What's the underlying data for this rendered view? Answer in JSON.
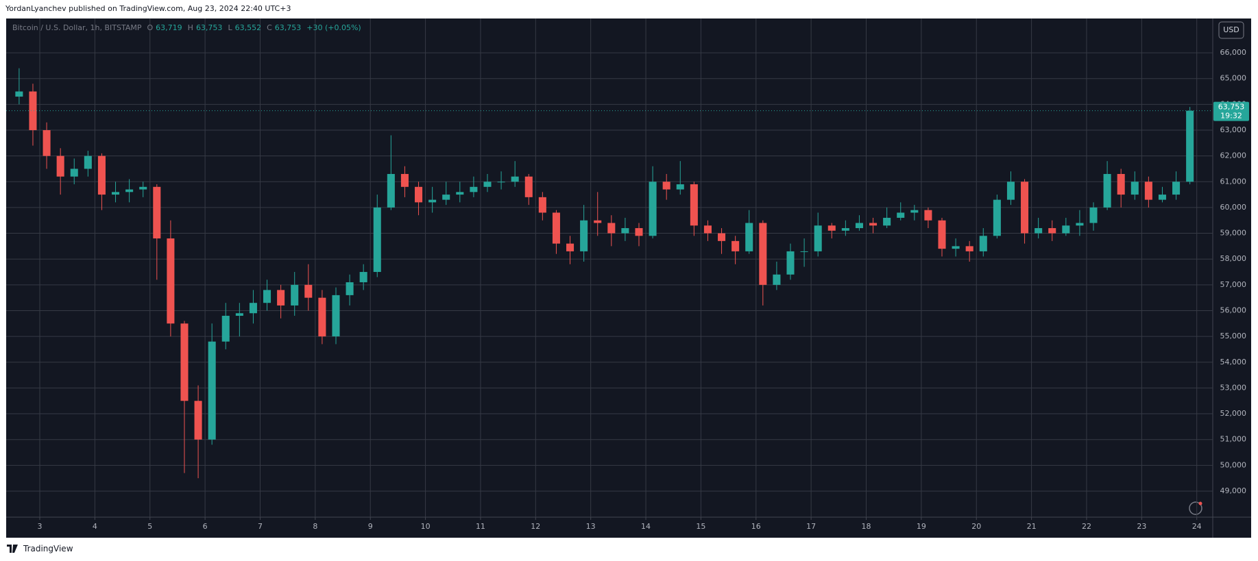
{
  "chart_data": {
    "type": "candlestick",
    "attribution": "YordanLyanchev published on TradingView.com, Aug 23, 2024 22:40 UTC+3",
    "symbol": "Bitcoin / U.S. Dollar, 1h, BITSTAMP",
    "ohlc_header": [
      {
        "key": "O",
        "text": "63,719"
      },
      {
        "key": "H",
        "text": "63,753"
      },
      {
        "key": "L",
        "text": "63,552"
      },
      {
        "key": "C",
        "text": "63,753"
      }
    ],
    "change_text": "+30 (+0.05%)",
    "currency": "USD",
    "last_price_label": "63,753",
    "countdown": "19:32",
    "footer": "TradingView",
    "up_color": "#26a69a",
    "down_color": "#ef5350",
    "grid": true,
    "xlim": [
      2.39,
      24.29
    ],
    "xticks": [
      3,
      4,
      5,
      6,
      7,
      8,
      9,
      10,
      11,
      12,
      13,
      14,
      15,
      16,
      17,
      18,
      19,
      20,
      21,
      22,
      23,
      24
    ],
    "ylim": [
      47990,
      67330
    ],
    "yticks": [
      {
        "value": 49000,
        "label": "49,000"
      },
      {
        "value": 50000,
        "label": "50,000"
      },
      {
        "value": 51000,
        "label": "51,000"
      },
      {
        "value": 52000,
        "label": "52,000"
      },
      {
        "value": 53000,
        "label": "53,000"
      },
      {
        "value": 54000,
        "label": "54,000"
      },
      {
        "value": 55000,
        "label": "55,000"
      },
      {
        "value": 56000,
        "label": "56,000"
      },
      {
        "value": 57000,
        "label": "57,000"
      },
      {
        "value": 58000,
        "label": "58,000"
      },
      {
        "value": 59000,
        "label": "59,000"
      },
      {
        "value": 60000,
        "label": "60,000"
      },
      {
        "value": 61000,
        "label": "61,000"
      },
      {
        "value": 62000,
        "label": "62,000"
      },
      {
        "value": 63000,
        "label": "63,000"
      },
      {
        "value": 64000,
        "label": "64,000"
      },
      {
        "value": 65000,
        "label": "65,000"
      },
      {
        "value": 66000,
        "label": "66,000"
      }
    ],
    "x": [
      2.625,
      2.875,
      3.125,
      3.375,
      3.625,
      3.875,
      4.125,
      4.375,
      4.625,
      4.875,
      5.125,
      5.375,
      5.625,
      5.875,
      6.125,
      6.375,
      6.625,
      6.875,
      7.125,
      7.375,
      7.625,
      7.875,
      8.125,
      8.375,
      8.625,
      8.875,
      9.125,
      9.375,
      9.625,
      9.875,
      10.125,
      10.375,
      10.625,
      10.875,
      11.125,
      11.375,
      11.625,
      11.875,
      12.125,
      12.375,
      12.625,
      12.875,
      13.125,
      13.375,
      13.625,
      13.875,
      14.125,
      14.375,
      14.625,
      14.875,
      15.125,
      15.375,
      15.625,
      15.875,
      16.125,
      16.375,
      16.625,
      16.875,
      17.125,
      17.375,
      17.625,
      17.875,
      18.125,
      18.375,
      18.625,
      18.875,
      19.125,
      19.375,
      19.625,
      19.875,
      20.125,
      20.375,
      20.625,
      20.875,
      21.125,
      21.375,
      21.625,
      21.875,
      22.125,
      22.375,
      22.625,
      22.875,
      23.125,
      23.375,
      23.625,
      23.875
    ],
    "open": [
      64300,
      64500,
      63000,
      62000,
      61200,
      61500,
      62000,
      60500,
      60600,
      60700,
      60800,
      58800,
      55500,
      52500,
      51000,
      54800,
      55800,
      55900,
      56300,
      56800,
      56200,
      57000,
      56500,
      55000,
      56600,
      57100,
      57500,
      60000,
      61300,
      60800,
      60200,
      60300,
      60500,
      60600,
      60800,
      61000,
      61000,
      61200,
      60400,
      59800,
      58600,
      58300,
      59500,
      59400,
      59000,
      59200,
      58900,
      61000,
      60700,
      60900,
      59300,
      59000,
      58700,
      58300,
      59400,
      57000,
      57400,
      58300,
      58300,
      59300,
      59100,
      59200,
      59400,
      59300,
      59600,
      59800,
      59900,
      59500,
      58400,
      58500,
      58300,
      58900,
      60300,
      61000,
      59000,
      59200,
      59000,
      59300,
      59400,
      60000,
      61300,
      60500,
      61000,
      60300,
      60500,
      61000
    ],
    "high": [
      65400,
      64800,
      63300,
      62300,
      61900,
      62200,
      62100,
      61000,
      61100,
      61000,
      60900,
      59500,
      55600,
      53100,
      55500,
      56300,
      56300,
      56800,
      57200,
      57000,
      57500,
      57800,
      56800,
      56900,
      57400,
      57800,
      60500,
      62800,
      61600,
      61000,
      60800,
      61000,
      61000,
      61200,
      61300,
      61400,
      61800,
      61300,
      60600,
      59900,
      58900,
      60100,
      60600,
      59700,
      59600,
      59400,
      61600,
      61300,
      61800,
      61000,
      59500,
      59200,
      58900,
      59900,
      59500,
      57900,
      58600,
      58800,
      59800,
      59400,
      59500,
      59700,
      59600,
      60000,
      60200,
      60100,
      60000,
      59600,
      58800,
      58700,
      59200,
      60500,
      61400,
      61100,
      59600,
      59500,
      59600,
      59900,
      60200,
      61800,
      61500,
      61400,
      61200,
      60800,
      61400,
      63900
    ],
    "low": [
      64000,
      62400,
      61500,
      60500,
      60900,
      61200,
      59900,
      60200,
      60200,
      60400,
      57200,
      55000,
      49700,
      49500,
      50800,
      54500,
      55000,
      55500,
      56000,
      55700,
      55800,
      56000,
      54700,
      54700,
      56200,
      56800,
      57300,
      59900,
      60400,
      59700,
      59800,
      60100,
      60200,
      60400,
      60600,
      60700,
      60800,
      60100,
      59500,
      58200,
      57800,
      57900,
      58900,
      58500,
      58700,
      58500,
      58800,
      60300,
      60500,
      58900,
      58700,
      58200,
      57800,
      58200,
      56200,
      56800,
      57200,
      57700,
      58100,
      58800,
      58900,
      59100,
      59000,
      59200,
      59500,
      59500,
      59200,
      58100,
      58100,
      57900,
      58100,
      58800,
      60100,
      58600,
      58800,
      58700,
      58900,
      58900,
      59100,
      59900,
      60000,
      60300,
      60000,
      60200,
      60300,
      60900
    ],
    "close": [
      64500,
      63000,
      62000,
      61200,
      61500,
      62000,
      60500,
      60600,
      60700,
      60800,
      58800,
      55500,
      52500,
      51000,
      54800,
      55800,
      55900,
      56300,
      56800,
      56200,
      57000,
      56500,
      55000,
      56600,
      57100,
      57500,
      60000,
      61300,
      60800,
      60200,
      60300,
      60500,
      60600,
      60800,
      61000,
      61000,
      61200,
      60400,
      59800,
      58600,
      58300,
      59500,
      59400,
      59000,
      59200,
      58900,
      61000,
      60700,
      60900,
      59300,
      59000,
      58700,
      58300,
      59400,
      57000,
      57400,
      58300,
      58300,
      59300,
      59100,
      59200,
      59400,
      59300,
      59600,
      59800,
      59900,
      59500,
      58400,
      58500,
      58300,
      58900,
      60300,
      61000,
      59000,
      59200,
      59000,
      59300,
      59400,
      60000,
      61300,
      60500,
      61000,
      60300,
      60500,
      61000,
      63753
    ]
  }
}
